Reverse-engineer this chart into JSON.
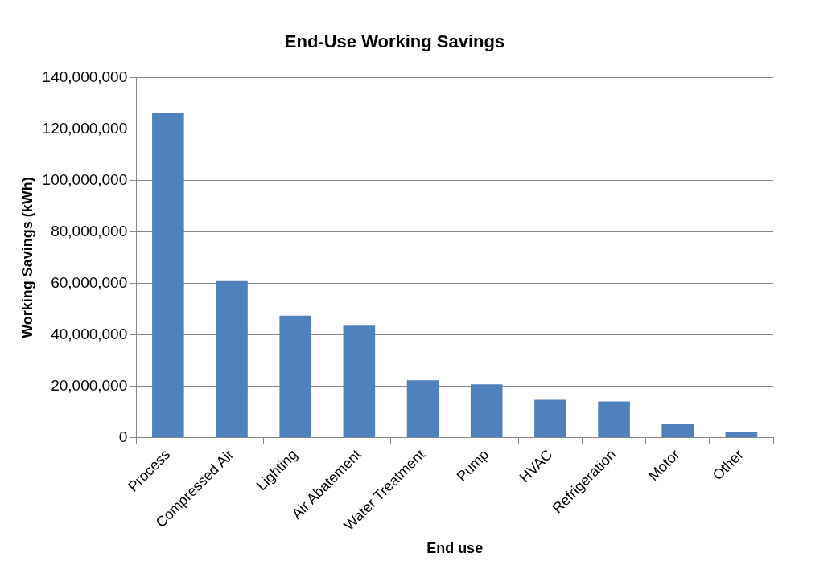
{
  "chart_data": {
    "type": "bar",
    "title": "End-Use Working Savings",
    "xlabel": "End use",
    "ylabel": "Working Savings (kWh)",
    "categories": [
      "Process",
      "Compressed Air",
      "Lighting",
      "Air Abatement",
      "Water Treatment",
      "Pump",
      "HVAC",
      "Refrigeration",
      "Motor",
      "Other"
    ],
    "values": [
      126200000,
      60900000,
      47400000,
      43500000,
      22300000,
      20700000,
      14700000,
      14100000,
      5500000,
      2300000
    ],
    "color": "#4f81bd",
    "ylim": [
      0,
      140000000
    ],
    "yticks": [
      {
        "value": 0,
        "label": "0"
      },
      {
        "value": 20000000,
        "label": "20,000,000"
      },
      {
        "value": 40000000,
        "label": "40,000,000"
      },
      {
        "value": 60000000,
        "label": "60,000,000"
      },
      {
        "value": 80000000,
        "label": "80,000,000"
      },
      {
        "value": 100000000,
        "label": "100,000,000"
      },
      {
        "value": 120000000,
        "label": "120,000,000"
      },
      {
        "value": 140000000,
        "label": "140,000,000"
      }
    ],
    "grid": "y",
    "legend": false
  }
}
